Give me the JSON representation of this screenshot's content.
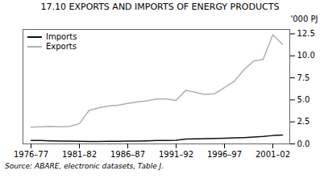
{
  "chart_data": {
    "type": "line",
    "title": "17.10   EXPORTS AND IMPORTS OF ENERGY PRODUCTS",
    "ylabel": "'000 PJ",
    "caption": "Source: ABARE, electronic datasets, Table J.",
    "categories": [
      "1976–77",
      null,
      null,
      null,
      null,
      "1981–82",
      null,
      null,
      null,
      null,
      "1986–87",
      null,
      null,
      null,
      null,
      "1991–92",
      null,
      null,
      null,
      null,
      "1996–97",
      null,
      null,
      null,
      null,
      "2001–02",
      null
    ],
    "series": [
      {
        "name": "Exports",
        "color": "#b0b0b0",
        "values": [
          1.9,
          1.95,
          2.0,
          1.95,
          2.0,
          2.3,
          3.8,
          4.1,
          4.3,
          4.4,
          4.6,
          4.75,
          4.9,
          5.1,
          5.1,
          4.95,
          6.1,
          5.85,
          5.6,
          5.7,
          6.4,
          7.1,
          8.4,
          9.4,
          9.6,
          12.4,
          11.3
        ]
      },
      {
        "name": "Imports",
        "color": "#111111",
        "values": [
          0.4,
          0.38,
          0.35,
          0.33,
          0.32,
          0.3,
          0.28,
          0.28,
          0.3,
          0.3,
          0.32,
          0.33,
          0.35,
          0.38,
          0.4,
          0.42,
          0.55,
          0.58,
          0.6,
          0.62,
          0.65,
          0.68,
          0.72,
          0.78,
          0.85,
          0.95,
          1.0
        ]
      }
    ],
    "ylim": [
      0.0,
      13.0
    ],
    "yticks": [
      {
        "value": 0.0,
        "label": "0.0"
      },
      2.5,
      {
        "value": 5.0,
        "label": "5.0"
      },
      7.5,
      {
        "value": 10.0,
        "label": "10.0"
      },
      12.5
    ],
    "legend": "upper left",
    "grid": false
  }
}
